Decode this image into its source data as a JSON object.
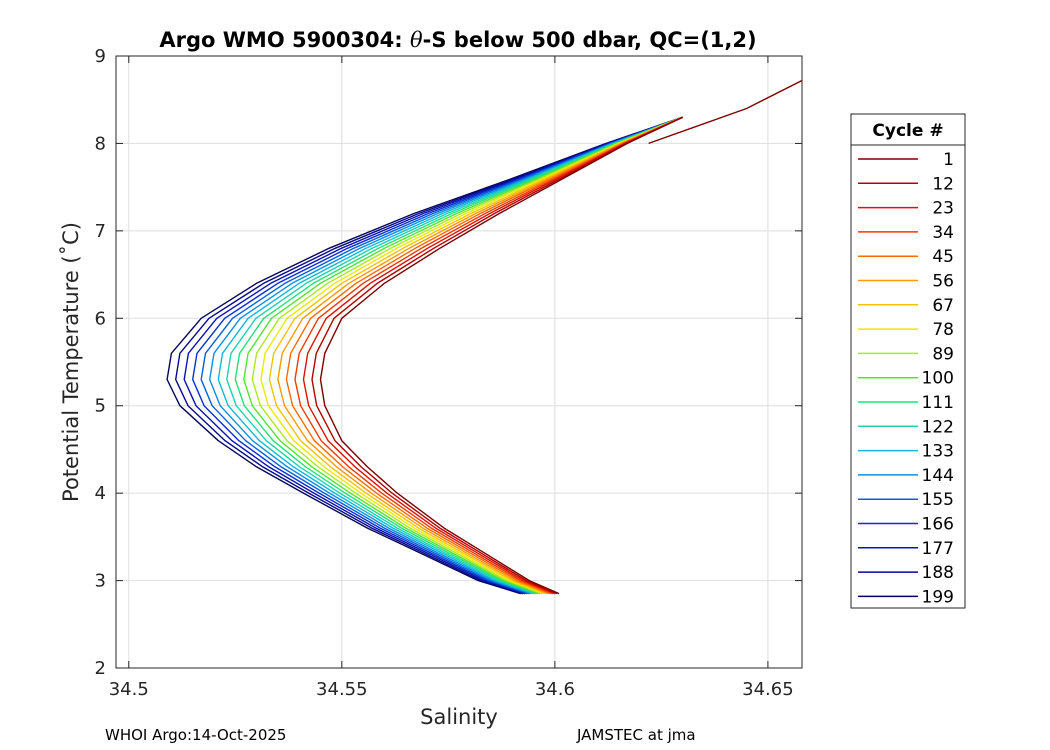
{
  "chart_data": {
    "type": "line",
    "title_prefix": "Argo WMO 5900304: ",
    "title_symbol": "θ",
    "title_suffix": "-S below 500 dbar,  QC=(1,2)",
    "xlabel": "Salinity",
    "ylabel": "Potential Temperature (˚C)",
    "xlim": [
      34.497,
      34.658
    ],
    "ylim": [
      2,
      9
    ],
    "xticks": [
      34.5,
      34.55,
      34.6,
      34.65
    ],
    "xtick_labels": [
      "34.5",
      "34.55",
      "34.6",
      "34.65"
    ],
    "yticks": [
      2,
      3,
      4,
      5,
      6,
      7,
      8,
      9
    ],
    "ytick_labels": [
      "2",
      "3",
      "4",
      "5",
      "6",
      "7",
      "8",
      "9"
    ],
    "grid": true,
    "legend_title": "Cycle #",
    "legend_position": "outside-right",
    "colormap": "jet",
    "cycles": [
      1,
      12,
      23,
      34,
      45,
      56,
      67,
      78,
      89,
      100,
      111,
      122,
      133,
      144,
      155,
      166,
      177,
      188,
      199
    ],
    "series_colors": [
      "#7a0000",
      "#b50000",
      "#dd1100",
      "#f03a00",
      "#ff6a00",
      "#ff9900",
      "#f2c400",
      "#ebea00",
      "#aee820",
      "#55e335",
      "#25e07a",
      "#1bd3b0",
      "#12b7db",
      "#0a90e0",
      "#0560da",
      "#0a2fd0",
      "#0a12b0",
      "#070a88",
      "#04065c"
    ],
    "profile_shape": {
      "note": "approximate theta-S profile per legend cycle; shape varies slowly with cycle",
      "theta": [
        2.85,
        3.0,
        3.3,
        3.6,
        4.0,
        4.3,
        4.6,
        5.0,
        5.3,
        5.6,
        6.0,
        6.4,
        6.8,
        7.2,
        7.6,
        8.0,
        8.3
      ],
      "salinity_early": [
        34.601,
        34.594,
        34.584,
        34.574,
        34.563,
        34.556,
        34.55,
        34.546,
        34.545,
        34.546,
        34.55,
        34.56,
        34.573,
        34.587,
        34.602,
        34.617,
        34.63
      ],
      "salinity_late": [
        34.592,
        34.582,
        34.569,
        34.556,
        34.541,
        34.53,
        34.521,
        34.512,
        34.509,
        34.51,
        34.517,
        34.53,
        34.547,
        34.567,
        34.59,
        34.612,
        34.63
      ]
    },
    "extra_profile": {
      "theta": [
        8.72,
        8.4,
        8.0
      ],
      "salinity": [
        34.658,
        34.645,
        34.622
      ]
    }
  },
  "footer": {
    "left": "WHOI Argo:14-Oct-2025",
    "right": "JAMSTEC at jma"
  }
}
